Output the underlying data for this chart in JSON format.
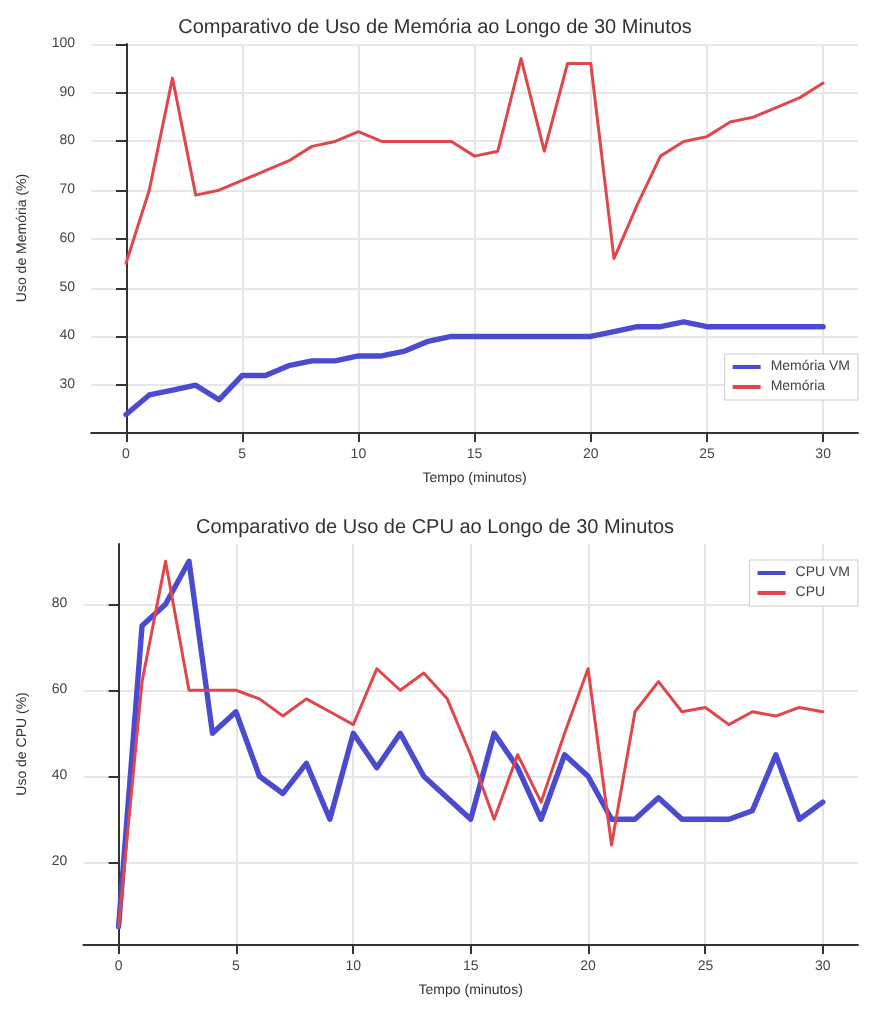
{
  "chart_data": [
    {
      "type": "line",
      "title": "Comparativo de Uso de Memória ao Longo de 30 Minutos",
      "xlabel": "Tempo (minutos)",
      "ylabel": "Uso de Memória (%)",
      "x": [
        0,
        1,
        2,
        3,
        4,
        5,
        6,
        7,
        8,
        9,
        10,
        11,
        12,
        13,
        14,
        15,
        16,
        17,
        18,
        19,
        20,
        21,
        22,
        23,
        24,
        25,
        26,
        27,
        28,
        29,
        30
      ],
      "series": [
        {
          "name": "Memória VM",
          "color": "#4b4bd0",
          "values": [
            24,
            28,
            29,
            30,
            27,
            32,
            32,
            34,
            35,
            35,
            36,
            36,
            37,
            39,
            40,
            40,
            40,
            40,
            40,
            40,
            40,
            41,
            42,
            42,
            43,
            42,
            42,
            42,
            42,
            42,
            42
          ]
        },
        {
          "name": "Memória",
          "color": "#e0474c",
          "values": [
            55,
            70,
            93,
            69,
            70,
            72,
            74,
            76,
            79,
            80,
            82,
            80,
            80,
            80,
            80,
            77,
            78,
            97,
            78,
            96,
            96,
            56,
            67,
            77,
            80,
            81,
            84,
            85,
            87,
            89,
            92
          ]
        }
      ],
      "xlim": [
        -1.5,
        31.5
      ],
      "xticks": [
        0,
        5,
        10,
        15,
        20,
        25,
        30
      ],
      "ylim": [
        20.4,
        100
      ],
      "yticks": [
        30,
        40,
        50,
        60,
        70,
        80,
        90,
        100
      ],
      "grid": true,
      "legend": "bottom right",
      "marker": "none",
      "line_style": "solid"
    },
    {
      "type": "line",
      "title": "Comparativo de Uso de CPU ao Longo de 30 Minutos",
      "xlabel": "Tempo (minutos)",
      "ylabel": "Uso de CPU (%)",
      "x": [
        0,
        1,
        2,
        3,
        4,
        5,
        6,
        7,
        8,
        9,
        10,
        11,
        12,
        13,
        14,
        15,
        16,
        17,
        18,
        19,
        20,
        21,
        22,
        23,
        24,
        25,
        26,
        27,
        28,
        29,
        30
      ],
      "series": [
        {
          "name": "CPU VM",
          "color": "#4b4bd0",
          "values": [
            5,
            75,
            80,
            90,
            50,
            55,
            40,
            36,
            43,
            30,
            50,
            42,
            50,
            40,
            35,
            30,
            50,
            42,
            30,
            45,
            40,
            30,
            30,
            35,
            30,
            30,
            30,
            32,
            45,
            30,
            34
          ]
        },
        {
          "name": "CPU",
          "color": "#e0474c",
          "values": [
            5,
            62,
            90,
            60,
            60,
            60,
            58,
            54,
            58,
            55,
            52,
            65,
            60,
            64,
            58,
            45,
            30,
            45,
            34,
            50,
            65,
            24,
            55,
            62,
            55,
            56,
            52,
            55,
            54,
            56,
            55
          ]
        }
      ],
      "xlim": [
        -1.5,
        31.5
      ],
      "xticks": [
        0,
        5,
        10,
        15,
        20,
        25,
        30
      ],
      "ylim": [
        1,
        94
      ],
      "yticks": [
        20,
        40,
        60,
        80
      ],
      "grid": true,
      "legend": "top right",
      "marker": "none",
      "line_style": "solid"
    }
  ]
}
